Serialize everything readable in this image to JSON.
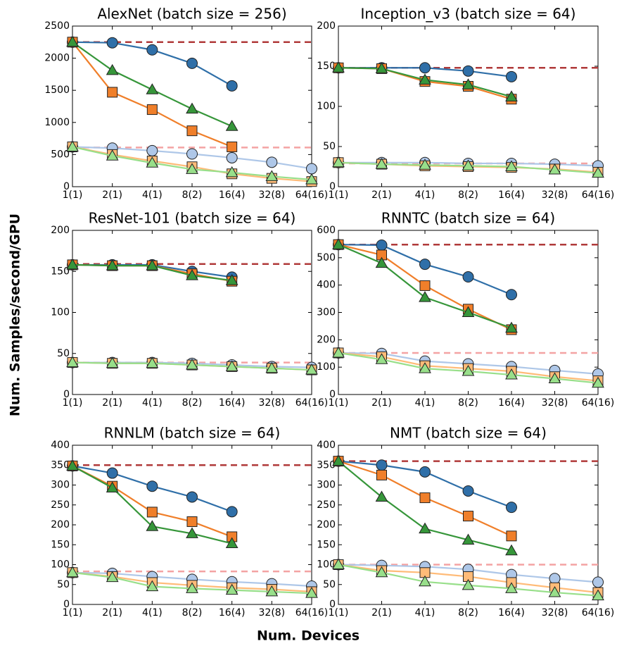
{
  "ylabel": "Num. Samples/second/GPU",
  "xlabel": "Num. Devices",
  "chart_data": [
    {
      "type": "line",
      "title": "AlexNet (batch size = 256)",
      "categories": [
        "1(1)",
        "2(1)",
        "4(1)",
        "8(2)",
        "16(4)",
        "32(8)",
        "64(16)"
      ],
      "ylim": [
        0,
        2500
      ],
      "yticks": [
        0,
        500,
        1000,
        1500,
        2000,
        2500
      ],
      "hlines": [
        {
          "value": 2250,
          "color": "#b03a3a"
        },
        {
          "value": 610,
          "color": "#f4a3a3"
        }
      ],
      "series": [
        {
          "color": "#aec7e8",
          "marker": "circle",
          "values": [
            620,
            600,
            560,
            510,
            450,
            380,
            280
          ]
        },
        {
          "color": "#ffbb78",
          "marker": "square",
          "values": [
            620,
            500,
            400,
            310,
            200,
            130,
            80
          ]
        },
        {
          "color": "#98df8a",
          "marker": "triangle",
          "values": [
            620,
            480,
            370,
            270,
            220,
            160,
            110
          ]
        },
        {
          "color": "#2f6fa8",
          "marker": "circle",
          "values": [
            2250,
            2240,
            2130,
            1920,
            1570,
            null,
            null
          ]
        },
        {
          "color": "#f07f2a",
          "marker": "square",
          "values": [
            2250,
            1470,
            1200,
            870,
            620,
            null,
            null
          ]
        },
        {
          "color": "#36963a",
          "marker": "triangle",
          "values": [
            2250,
            1810,
            1510,
            1210,
            940,
            null,
            null
          ]
        }
      ]
    },
    {
      "type": "line",
      "title": "Inception_v3 (batch size = 64)",
      "categories": [
        "1(1)",
        "2(1)",
        "4(1)",
        "8(2)",
        "16(4)",
        "32(8)",
        "64(16)"
      ],
      "ylim": [
        0,
        200
      ],
      "yticks": [
        0,
        50,
        100,
        150,
        200
      ],
      "hlines": [
        {
          "value": 148,
          "color": "#b03a3a"
        },
        {
          "value": 29,
          "color": "#f4a3a3"
        }
      ],
      "series": [
        {
          "color": "#aec7e8",
          "marker": "circle",
          "values": [
            30,
            30,
            30,
            29,
            29,
            28,
            26
          ]
        },
        {
          "color": "#ffbb78",
          "marker": "square",
          "values": [
            30,
            28,
            26,
            25,
            24,
            22,
            18
          ]
        },
        {
          "color": "#98df8a",
          "marker": "triangle",
          "values": [
            30,
            28,
            27,
            26,
            25,
            21,
            17
          ]
        },
        {
          "color": "#2f6fa8",
          "marker": "circle",
          "values": [
            148,
            148,
            148,
            144,
            137,
            null,
            null
          ]
        },
        {
          "color": "#f07f2a",
          "marker": "square",
          "values": [
            148,
            147,
            131,
            125,
            109,
            null,
            null
          ]
        },
        {
          "color": "#36963a",
          "marker": "triangle",
          "values": [
            148,
            147,
            133,
            127,
            112,
            null,
            null
          ]
        }
      ]
    },
    {
      "type": "line",
      "title": "ResNet-101 (batch size = 64)",
      "categories": [
        "1(1)",
        "2(1)",
        "4(1)",
        "8(2)",
        "16(4)",
        "32(8)",
        "64(16)"
      ],
      "ylim": [
        0,
        200
      ],
      "yticks": [
        0,
        50,
        100,
        150,
        200
      ],
      "hlines": [
        {
          "value": 159,
          "color": "#b03a3a"
        },
        {
          "value": 39,
          "color": "#f4a3a3"
        }
      ],
      "series": [
        {
          "color": "#aec7e8",
          "marker": "circle",
          "values": [
            39,
            39,
            39,
            38,
            36,
            34,
            33
          ]
        },
        {
          "color": "#ffbb78",
          "marker": "square",
          "values": [
            39,
            38,
            38,
            36,
            34,
            32,
            30
          ]
        },
        {
          "color": "#98df8a",
          "marker": "triangle",
          "values": [
            39,
            38,
            38,
            36,
            34,
            32,
            30
          ]
        },
        {
          "color": "#2f6fa8",
          "marker": "circle",
          "values": [
            158,
            158,
            158,
            150,
            143,
            null,
            null
          ]
        },
        {
          "color": "#f07f2a",
          "marker": "square",
          "values": [
            158,
            157,
            157,
            147,
            138,
            null,
            null
          ]
        },
        {
          "color": "#36963a",
          "marker": "triangle",
          "values": [
            158,
            157,
            157,
            145,
            139,
            null,
            null
          ]
        }
      ]
    },
    {
      "type": "line",
      "title": "RNNTC (batch size = 64)",
      "categories": [
        "1(1)",
        "2(1)",
        "4(1)",
        "8(2)",
        "16(4)",
        "32(8)",
        "64(16)"
      ],
      "ylim": [
        0,
        600
      ],
      "yticks": [
        0,
        100,
        200,
        300,
        400,
        500,
        600
      ],
      "hlines": [
        {
          "value": 548,
          "color": "#b03a3a"
        },
        {
          "value": 152,
          "color": "#f4a3a3"
        }
      ],
      "series": [
        {
          "color": "#aec7e8",
          "marker": "circle",
          "values": [
            152,
            150,
            122,
            112,
            102,
            88,
            75
          ]
        },
        {
          "color": "#ffbb78",
          "marker": "square",
          "values": [
            152,
            138,
            105,
            95,
            85,
            65,
            50
          ]
        },
        {
          "color": "#98df8a",
          "marker": "triangle",
          "values": [
            152,
            128,
            95,
            85,
            72,
            58,
            42
          ]
        },
        {
          "color": "#2f6fa8",
          "marker": "circle",
          "values": [
            548,
            546,
            476,
            430,
            365,
            null,
            null
          ]
        },
        {
          "color": "#f07f2a",
          "marker": "square",
          "values": [
            548,
            510,
            398,
            312,
            237,
            null,
            null
          ]
        },
        {
          "color": "#36963a",
          "marker": "triangle",
          "values": [
            548,
            480,
            355,
            300,
            243,
            null,
            null
          ]
        }
      ]
    },
    {
      "type": "line",
      "title": "RNNLM (batch size = 64)",
      "categories": [
        "1(1)",
        "2(1)",
        "4(1)",
        "8(2)",
        "16(4)",
        "32(8)",
        "64(16)"
      ],
      "ylim": [
        0,
        400
      ],
      "yticks": [
        0,
        50,
        100,
        150,
        200,
        250,
        300,
        350,
        400
      ],
      "hlines": [
        {
          "value": 350,
          "color": "#b03a3a"
        },
        {
          "value": 83,
          "color": "#f4a3a3"
        }
      ],
      "series": [
        {
          "color": "#aec7e8",
          "marker": "circle",
          "values": [
            80,
            78,
            70,
            63,
            57,
            52,
            46
          ]
        },
        {
          "color": "#ffbb78",
          "marker": "square",
          "values": [
            80,
            70,
            55,
            48,
            42,
            38,
            32
          ]
        },
        {
          "color": "#98df8a",
          "marker": "triangle",
          "values": [
            80,
            68,
            45,
            40,
            36,
            32,
            28
          ]
        },
        {
          "color": "#2f6fa8",
          "marker": "circle",
          "values": [
            348,
            330,
            297,
            270,
            233,
            null,
            null
          ]
        },
        {
          "color": "#f07f2a",
          "marker": "square",
          "values": [
            348,
            297,
            232,
            208,
            170,
            null,
            null
          ]
        },
        {
          "color": "#36963a",
          "marker": "triangle",
          "values": [
            348,
            293,
            196,
            178,
            153,
            null,
            null
          ]
        }
      ]
    },
    {
      "type": "line",
      "title": "NMT (batch size = 64)",
      "categories": [
        "1(1)",
        "2(1)",
        "4(1)",
        "8(2)",
        "16(4)",
        "32(8)",
        "64(16)"
      ],
      "ylim": [
        0,
        400
      ],
      "yticks": [
        0,
        50,
        100,
        150,
        200,
        250,
        300,
        350,
        400
      ],
      "hlines": [
        {
          "value": 360,
          "color": "#b03a3a"
        },
        {
          "value": 100,
          "color": "#f4a3a3"
        }
      ],
      "series": [
        {
          "color": "#aec7e8",
          "marker": "circle",
          "values": [
            100,
            98,
            95,
            88,
            75,
            65,
            56
          ]
        },
        {
          "color": "#ffbb78",
          "marker": "square",
          "values": [
            100,
            85,
            80,
            70,
            55,
            42,
            30
          ]
        },
        {
          "color": "#98df8a",
          "marker": "triangle",
          "values": [
            100,
            80,
            57,
            48,
            40,
            30,
            22
          ]
        },
        {
          "color": "#2f6fa8",
          "marker": "circle",
          "values": [
            360,
            350,
            333,
            285,
            244,
            null,
            null
          ]
        },
        {
          "color": "#f07f2a",
          "marker": "square",
          "values": [
            360,
            325,
            268,
            222,
            172,
            null,
            null
          ]
        },
        {
          "color": "#36963a",
          "marker": "triangle",
          "values": [
            360,
            270,
            190,
            162,
            135,
            null,
            null
          ]
        }
      ]
    }
  ]
}
